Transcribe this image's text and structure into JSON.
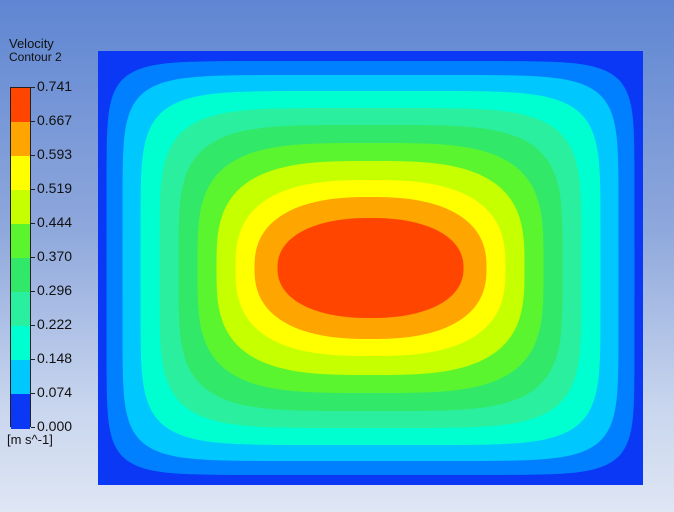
{
  "chart_data": {
    "type": "heatmap",
    "title": "Velocity",
    "subtitle": "Contour 2",
    "units": "[m s^-1]",
    "levels": [
      "0.741",
      "0.667",
      "0.593",
      "0.519",
      "0.444",
      "0.370",
      "0.296",
      "0.222",
      "0.148",
      "0.074",
      "0.000"
    ],
    "min": 0.0,
    "max": 0.741,
    "band_colors": [
      "#ff4500",
      "#ffa500",
      "#ffff00",
      "#c6ff00",
      "#5bf52f",
      "#32e868",
      "#2aef9f",
      "#00ffd0",
      "#00c8ff",
      "#0080ff",
      "#0a38f5"
    ],
    "field_levels": [
      0.0,
      0.074,
      0.148,
      0.222,
      0.296,
      0.37,
      0.444,
      0.519,
      0.593,
      0.667
    ],
    "field": "rectangular duct velocity contours (peak at centre)"
  }
}
